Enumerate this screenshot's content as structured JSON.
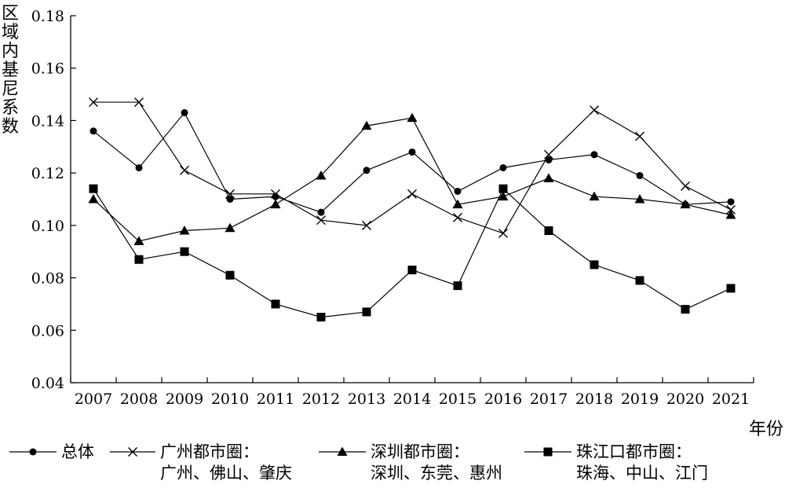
{
  "chart_data": {
    "type": "line",
    "x": [
      "2007",
      "2008",
      "2009",
      "2010",
      "2011",
      "2012",
      "2013",
      "2014",
      "2015",
      "2016",
      "2017",
      "2018",
      "2019",
      "2020",
      "2021"
    ],
    "xlabel": "年份",
    "ylabel": "区域内基尼系数",
    "ylim": [
      0.04,
      0.18
    ],
    "yticks": [
      "0.04",
      "0.06",
      "0.08",
      "0.10",
      "0.12",
      "0.14",
      "0.16",
      "0.18"
    ],
    "grid": false,
    "legend_position": "bottom",
    "series": [
      {
        "name": "总体",
        "marker": "circle",
        "values": [
          0.136,
          0.122,
          0.143,
          0.11,
          0.111,
          0.105,
          0.121,
          0.128,
          0.113,
          0.122,
          0.125,
          0.127,
          0.119,
          0.108,
          0.109
        ]
      },
      {
        "name": "广州都市圈：",
        "name_line2": "广州、佛山、肇庆",
        "marker": "x",
        "values": [
          0.147,
          0.147,
          0.121,
          0.112,
          0.112,
          0.102,
          0.1,
          0.112,
          0.103,
          0.097,
          0.127,
          0.144,
          0.134,
          0.115,
          0.106
        ]
      },
      {
        "name": "深圳都市圈：",
        "name_line2": "深圳、东莞、惠州",
        "marker": "triangle",
        "values": [
          0.11,
          0.094,
          0.098,
          0.099,
          0.108,
          0.119,
          0.138,
          0.141,
          0.108,
          0.111,
          0.118,
          0.111,
          0.11,
          0.108,
          0.104
        ]
      },
      {
        "name": "珠江口都市圈：",
        "name_line2": "珠海、中山、江门",
        "marker": "square",
        "values": [
          0.114,
          0.087,
          0.09,
          0.081,
          0.07,
          0.065,
          0.067,
          0.083,
          0.077,
          0.114,
          0.098,
          0.085,
          0.079,
          0.068,
          0.076
        ]
      }
    ]
  }
}
